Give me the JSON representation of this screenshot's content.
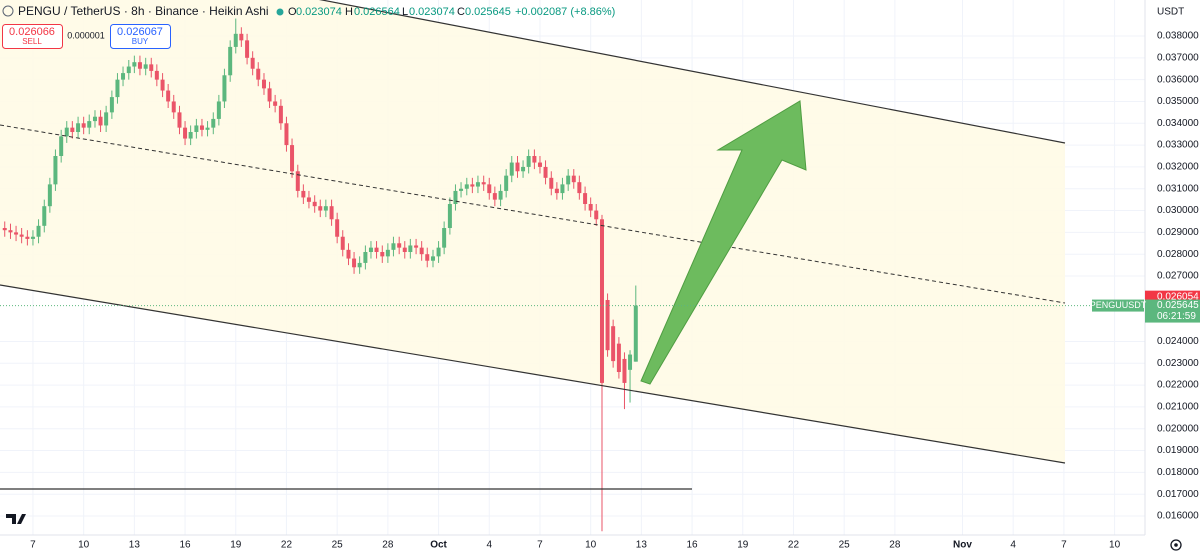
{
  "chart_data": {
    "type": "candlestick",
    "title": "PENGU / TetherUS · 8h · Binance · Heikin Ashi",
    "legend": {
      "open_label": "O",
      "high_label": "H",
      "low_label": "L",
      "close_label": "C",
      "change": "+0.002087 (+8.86%)"
    },
    "order_panel": {
      "sell_price": 0.026066,
      "sell_label": "SELL",
      "spread": 1e-06,
      "buy_price": 0.026067,
      "buy_label": "BUY"
    },
    "currency": "USDT",
    "symbol_label": "PENGUUSDT",
    "countdown": "06:21:59",
    "price_line": 0.026054,
    "up_color": "#5cb77e",
    "down_color": "#ea5468",
    "grid": true,
    "xlim": [
      5.05,
      72.8
    ],
    "ylim": [
      0.01513,
      0.03965
    ],
    "xticks": [
      {
        "value": 7,
        "label": "7"
      },
      {
        "value": 10,
        "label": "10"
      },
      {
        "value": 13,
        "label": "13"
      },
      {
        "value": 16,
        "label": "16"
      },
      {
        "value": 19,
        "label": "19"
      },
      {
        "value": 22,
        "label": "22"
      },
      {
        "value": 25,
        "label": "25"
      },
      {
        "value": 28,
        "label": "28"
      },
      {
        "value": 31,
        "label": "Oct"
      },
      {
        "value": 34,
        "label": "4"
      },
      {
        "value": 37,
        "label": "7"
      },
      {
        "value": 40,
        "label": "10"
      },
      {
        "value": 43,
        "label": "13"
      },
      {
        "value": 46,
        "label": "16"
      },
      {
        "value": 49,
        "label": "19"
      },
      {
        "value": 52,
        "label": "22"
      },
      {
        "value": 55,
        "label": "25"
      },
      {
        "value": 58,
        "label": "28"
      },
      {
        "value": 62,
        "label": "Nov"
      },
      {
        "value": 65,
        "label": "4"
      },
      {
        "value": 68,
        "label": "7"
      },
      {
        "value": 71,
        "label": "10"
      }
    ],
    "yticks": [
      {
        "value": 0.038,
        "label": "0.038000"
      },
      {
        "value": 0.037,
        "label": "0.037000"
      },
      {
        "value": 0.036,
        "label": "0.036000"
      },
      {
        "value": 0.035,
        "label": "0.035000"
      },
      {
        "value": 0.034,
        "label": "0.034000"
      },
      {
        "value": 0.033,
        "label": "0.033000"
      },
      {
        "value": 0.032,
        "label": "0.032000"
      },
      {
        "value": 0.031,
        "label": "0.031000"
      },
      {
        "value": 0.03,
        "label": "0.030000"
      },
      {
        "value": 0.029,
        "label": "0.029000"
      },
      {
        "value": 0.028,
        "label": "0.028000"
      },
      {
        "value": 0.027,
        "label": "0.027000"
      },
      {
        "value": 0.024,
        "label": "0.024000"
      },
      {
        "value": 0.023,
        "label": "0.023000"
      },
      {
        "value": 0.022,
        "label": "0.022000"
      },
      {
        "value": 0.021,
        "label": "0.021000"
      },
      {
        "value": 0.02,
        "label": "0.020000"
      },
      {
        "value": 0.019,
        "label": "0.019000"
      },
      {
        "value": 0.018,
        "label": "0.018000"
      },
      {
        "value": 0.017,
        "label": "0.017000"
      },
      {
        "value": 0.016,
        "label": "0.016000"
      }
    ],
    "x": [
      5.33,
      5.67,
      6,
      6.33,
      6.67,
      7,
      7.33,
      7.67,
      8,
      8.33,
      8.67,
      9,
      9.33,
      9.67,
      10,
      10.33,
      10.67,
      11,
      11.33,
      11.67,
      12,
      12.33,
      12.67,
      13,
      13.33,
      13.67,
      14,
      14.33,
      14.67,
      15,
      15.33,
      15.67,
      16,
      16.33,
      16.67,
      17,
      17.33,
      17.67,
      18,
      18.33,
      18.67,
      19,
      19.33,
      19.67,
      20,
      20.33,
      20.67,
      21,
      21.33,
      21.67,
      22,
      22.33,
      22.67,
      23,
      23.33,
      23.67,
      24,
      24.33,
      24.67,
      25,
      25.33,
      25.67,
      26,
      26.33,
      26.67,
      27,
      27.33,
      27.67,
      28,
      28.33,
      28.67,
      29,
      29.33,
      29.67,
      30,
      30.33,
      30.67,
      31,
      31.33,
      31.67,
      32,
      32.33,
      32.67,
      33,
      33.33,
      33.67,
      34,
      34.33,
      34.67,
      35,
      35.33,
      35.67,
      36,
      36.33,
      36.67,
      37,
      37.33,
      37.67,
      38,
      38.33,
      38.67,
      39,
      39.33,
      39.67,
      40,
      40.33,
      40.67,
      41,
      41.33,
      41.67,
      42,
      42.33,
      42.67
    ],
    "open": [
      0.0292,
      0.0291,
      0.029,
      0.0289,
      0.0288,
      0.0287,
      0.0288,
      0.0293,
      0.0302,
      0.0312,
      0.0325,
      0.0334,
      0.0338,
      0.0336,
      0.034,
      0.0338,
      0.0341,
      0.0343,
      0.0339,
      0.0345,
      0.0352,
      0.036,
      0.0363,
      0.0366,
      0.0368,
      0.0365,
      0.0367,
      0.0364,
      0.036,
      0.0355,
      0.035,
      0.0345,
      0.0338,
      0.0333,
      0.0336,
      0.0339,
      0.0337,
      0.0338,
      0.0342,
      0.035,
      0.0362,
      0.0375,
      0.0381,
      0.0378,
      0.037,
      0.0365,
      0.036,
      0.0356,
      0.035,
      0.0348,
      0.034,
      0.033,
      0.0318,
      0.0309,
      0.0306,
      0.0304,
      0.0302,
      0.03,
      0.0302,
      0.0296,
      0.0288,
      0.0282,
      0.0278,
      0.0274,
      0.0276,
      0.0281,
      0.0283,
      0.0281,
      0.0279,
      0.0282,
      0.0285,
      0.0283,
      0.0281,
      0.0284,
      0.0283,
      0.028,
      0.0277,
      0.0279,
      0.0283,
      0.0292,
      0.0303,
      0.0309,
      0.031,
      0.0312,
      0.0311,
      0.0313,
      0.0312,
      0.0308,
      0.0305,
      0.0309,
      0.0316,
      0.0322,
      0.0318,
      0.032,
      0.0325,
      0.0322,
      0.032,
      0.0315,
      0.031,
      0.0308,
      0.0312,
      0.0316,
      0.0313,
      0.0308,
      0.0303,
      0.03,
      0.0296,
      0.0259,
      0.0247,
      0.0239,
      0.0232,
      0.0227,
      0.023074
    ],
    "high": [
      0.0295,
      0.0294,
      0.0293,
      0.0292,
      0.0291,
      0.0291,
      0.0296,
      0.0305,
      0.0315,
      0.0328,
      0.0337,
      0.0341,
      0.0341,
      0.0343,
      0.0343,
      0.0344,
      0.0346,
      0.0346,
      0.0348,
      0.0355,
      0.0363,
      0.0366,
      0.0369,
      0.0371,
      0.0371,
      0.037,
      0.037,
      0.0367,
      0.0363,
      0.0358,
      0.0353,
      0.0348,
      0.0341,
      0.0339,
      0.0342,
      0.0342,
      0.0341,
      0.0345,
      0.0353,
      0.0365,
      0.0378,
      0.0388,
      0.0384,
      0.0381,
      0.0373,
      0.0368,
      0.0363,
      0.0359,
      0.0353,
      0.0351,
      0.0343,
      0.0333,
      0.0321,
      0.0312,
      0.0309,
      0.0307,
      0.0305,
      0.0305,
      0.0305,
      0.0299,
      0.0291,
      0.0285,
      0.0281,
      0.0279,
      0.0284,
      0.0286,
      0.0286,
      0.0284,
      0.0285,
      0.0288,
      0.0288,
      0.0286,
      0.0287,
      0.0287,
      0.0286,
      0.0283,
      0.0282,
      0.0286,
      0.0295,
      0.0306,
      0.0312,
      0.0313,
      0.0315,
      0.0315,
      0.0316,
      0.0316,
      0.0315,
      0.0311,
      0.0312,
      0.0319,
      0.0325,
      0.0325,
      0.0323,
      0.0328,
      0.0328,
      0.0325,
      0.0323,
      0.0318,
      0.0313,
      0.0315,
      0.0319,
      0.0319,
      0.0316,
      0.0311,
      0.0306,
      0.0303,
      0.0298,
      0.0262,
      0.025,
      0.0242,
      0.0235,
      0.0236,
      0.026564
    ],
    "low": [
      0.0288,
      0.0287,
      0.0286,
      0.0285,
      0.0284,
      0.0284,
      0.0285,
      0.029,
      0.0299,
      0.0309,
      0.0322,
      0.0331,
      0.0333,
      0.0333,
      0.0335,
      0.0335,
      0.0338,
      0.0336,
      0.0336,
      0.0342,
      0.0349,
      0.0357,
      0.036,
      0.0363,
      0.0362,
      0.0362,
      0.0361,
      0.0357,
      0.0352,
      0.0347,
      0.0342,
      0.0335,
      0.033,
      0.033,
      0.0333,
      0.0334,
      0.0334,
      0.0335,
      0.0339,
      0.0347,
      0.0359,
      0.0372,
      0.0375,
      0.0367,
      0.0362,
      0.0357,
      0.0353,
      0.0347,
      0.0345,
      0.0337,
      0.0327,
      0.0315,
      0.0306,
      0.0303,
      0.0301,
      0.0299,
      0.0297,
      0.0297,
      0.0293,
      0.0285,
      0.0279,
      0.0275,
      0.0271,
      0.0271,
      0.0273,
      0.0278,
      0.0278,
      0.0276,
      0.0276,
      0.0279,
      0.028,
      0.0278,
      0.0278,
      0.028,
      0.0277,
      0.0274,
      0.0274,
      0.0276,
      0.028,
      0.0289,
      0.03,
      0.0306,
      0.0307,
      0.0308,
      0.0308,
      0.0309,
      0.0305,
      0.0302,
      0.0302,
      0.0306,
      0.0313,
      0.0315,
      0.0315,
      0.0317,
      0.0319,
      0.0317,
      0.0312,
      0.0307,
      0.0305,
      0.0305,
      0.0309,
      0.031,
      0.0305,
      0.03,
      0.0297,
      0.0293,
      0.0153,
      0.0233,
      0.0228,
      0.0223,
      0.0209,
      0.0212,
      0.023074
    ],
    "close": [
      0.0291,
      0.029,
      0.0289,
      0.0288,
      0.0287,
      0.0288,
      0.0293,
      0.0302,
      0.0312,
      0.0325,
      0.0334,
      0.0338,
      0.0336,
      0.034,
      0.0338,
      0.0341,
      0.0343,
      0.0339,
      0.0345,
      0.0352,
      0.036,
      0.0363,
      0.0366,
      0.0368,
      0.0365,
      0.0367,
      0.0364,
      0.036,
      0.0355,
      0.035,
      0.0345,
      0.0338,
      0.0333,
      0.0336,
      0.0339,
      0.0337,
      0.0338,
      0.0342,
      0.035,
      0.0362,
      0.0375,
      0.0381,
      0.0378,
      0.037,
      0.0365,
      0.036,
      0.0356,
      0.035,
      0.0348,
      0.034,
      0.033,
      0.0318,
      0.0309,
      0.0306,
      0.0304,
      0.0302,
      0.03,
      0.0302,
      0.0296,
      0.0288,
      0.0282,
      0.0278,
      0.0274,
      0.0276,
      0.0281,
      0.0283,
      0.0281,
      0.0279,
      0.0282,
      0.0285,
      0.0283,
      0.0281,
      0.0284,
      0.0283,
      0.028,
      0.0277,
      0.0279,
      0.0283,
      0.0292,
      0.0303,
      0.0309,
      0.031,
      0.0312,
      0.0311,
      0.0313,
      0.0312,
      0.0308,
      0.0305,
      0.0309,
      0.0316,
      0.0322,
      0.0318,
      0.032,
      0.0325,
      0.0322,
      0.032,
      0.0315,
      0.031,
      0.0308,
      0.0312,
      0.0316,
      0.0313,
      0.0308,
      0.0303,
      0.03,
      0.0296,
      0.0221,
      0.0236,
      0.0231,
      0.0226,
      0.0221,
      0.0234,
      0.025645
    ]
  }
}
